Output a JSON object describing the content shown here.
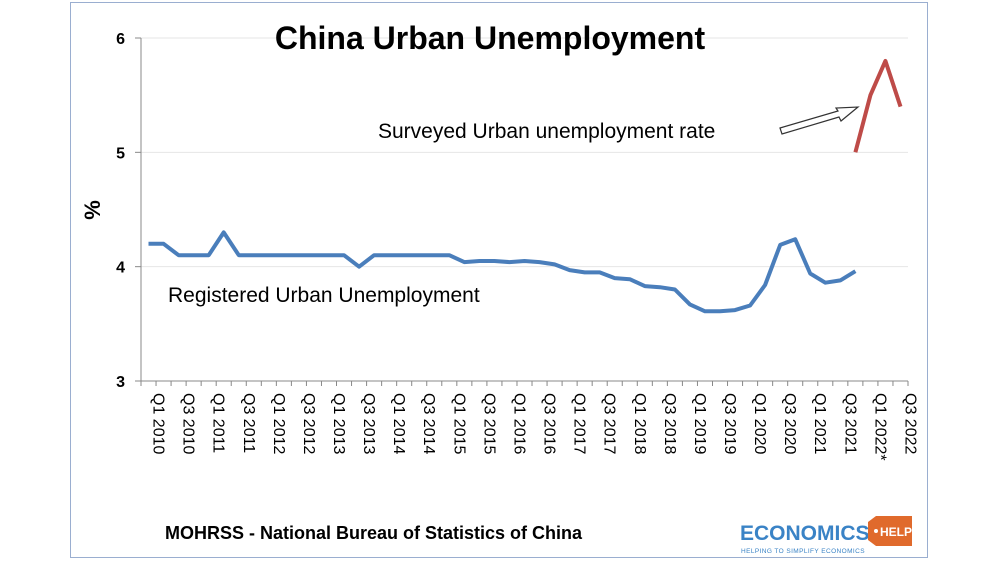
{
  "chart_data": {
    "type": "line",
    "title": "China Urban Unemployment",
    "ylabel": "%",
    "ylim": [
      3,
      6
    ],
    "yticks": [
      "3",
      "4",
      "5",
      "6"
    ],
    "grid": true,
    "xtick_labels": [
      "Q1 2010",
      "Q3 2010",
      "Q1 2011",
      "Q3 2011",
      "Q1 2012",
      "Q3 2012",
      "Q1 2013",
      "Q3 2013",
      "Q1 2014",
      "Q3 2014",
      "Q1 2015",
      "Q3 2015",
      "Q1 2016",
      "Q3 2016",
      "Q1 2017",
      "Q3 2017",
      "Q1 2018",
      "Q3 2018",
      "Q1 2019",
      "Q3 2019",
      "Q1 2020",
      "Q3 2020",
      "Q1 2021",
      "Q3 2021",
      "Q1 2022*",
      "Q3 2022"
    ],
    "x": [
      "Q1 2010",
      "Q2 2010",
      "Q3 2010",
      "Q4 2010",
      "Q1 2011",
      "Q2 2011",
      "Q3 2011",
      "Q4 2011",
      "Q1 2012",
      "Q2 2012",
      "Q3 2012",
      "Q4 2012",
      "Q1 2013",
      "Q2 2013",
      "Q3 2013",
      "Q4 2013",
      "Q1 2014",
      "Q2 2014",
      "Q3 2014",
      "Q4 2014",
      "Q1 2015",
      "Q2 2015",
      "Q3 2015",
      "Q4 2015",
      "Q1 2016",
      "Q2 2016",
      "Q3 2016",
      "Q4 2016",
      "Q1 2017",
      "Q2 2017",
      "Q3 2017",
      "Q4 2017",
      "Q1 2018",
      "Q2 2018",
      "Q3 2018",
      "Q4 2018",
      "Q1 2019",
      "Q2 2019",
      "Q3 2019",
      "Q4 2019",
      "Q1 2020",
      "Q2 2020",
      "Q3 2020",
      "Q4 2020",
      "Q1 2021",
      "Q2 2021",
      "Q3 2021",
      "Q4 2021",
      "Q1 2022",
      "Q2 2022",
      "Q3 2022"
    ],
    "series": [
      {
        "name": "Registered Urban Unemployment",
        "color": "#4a7ebb",
        "values": [
          4.2,
          4.2,
          4.1,
          4.1,
          4.1,
          4.3,
          4.1,
          4.1,
          4.1,
          4.1,
          4.1,
          4.1,
          4.1,
          4.1,
          4.0,
          4.1,
          4.1,
          4.1,
          4.1,
          4.1,
          4.1,
          4.04,
          4.05,
          4.05,
          4.04,
          4.05,
          4.04,
          4.02,
          3.97,
          3.95,
          3.95,
          3.9,
          3.89,
          3.83,
          3.82,
          3.8,
          3.67,
          3.61,
          3.61,
          3.62,
          3.66,
          3.84,
          4.19,
          4.24,
          3.94,
          3.86,
          3.88,
          3.96,
          null,
          null,
          null
        ]
      },
      {
        "name": "Surveyed Urban unemployment rate",
        "color": "#be4b48",
        "values": [
          null,
          null,
          null,
          null,
          null,
          null,
          null,
          null,
          null,
          null,
          null,
          null,
          null,
          null,
          null,
          null,
          null,
          null,
          null,
          null,
          null,
          null,
          null,
          null,
          null,
          null,
          null,
          null,
          null,
          null,
          null,
          null,
          null,
          null,
          null,
          null,
          null,
          null,
          null,
          null,
          null,
          null,
          null,
          null,
          null,
          null,
          null,
          5.0,
          5.5,
          5.8,
          5.4
        ]
      }
    ],
    "annotations": [
      "Surveyed Urban unemployment rate",
      "Registered Urban Unemployment"
    ]
  },
  "source": "MOHRSS - National Bureau of Statistics of China",
  "logo": {
    "main": "ECONOMICS",
    "badge": "HELP",
    "tagline": "HELPING TO SIMPLIFY ECONOMICS"
  }
}
